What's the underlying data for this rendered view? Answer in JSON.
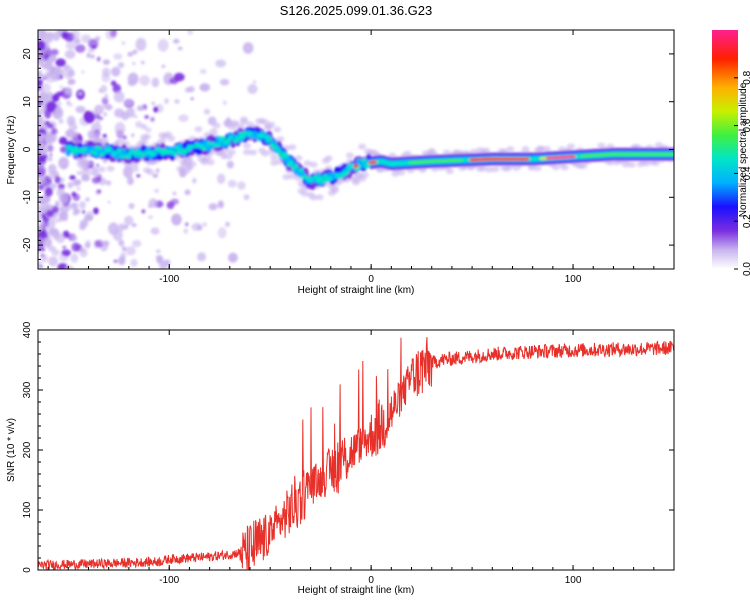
{
  "title": "S126.2025.099.01.36.G23",
  "chart_data": [
    {
      "type": "heatmap",
      "xlabel": "Height of straight line (km)",
      "ylabel": "Frequency (Hz)",
      "xlim": [
        -165,
        150
      ],
      "ylim": [
        -25,
        25
      ],
      "xticks": [
        -100,
        0,
        100
      ],
      "yticks": [
        -20,
        -10,
        0,
        10,
        20
      ],
      "colorbar": {
        "label": "Normalized spectral amplitude",
        "range": [
          0,
          1
        ],
        "ticks": [
          "0.0",
          "0.2",
          "0.4",
          "0.6",
          "0.8"
        ],
        "colormap": [
          "#ffffff",
          "#c9b4ef",
          "#7a2ee0",
          "#1a10ff",
          "#00b0ff",
          "#00e5c8",
          "#40f040",
          "#c8f000",
          "#ffb000",
          "#ff2000",
          "#ff2090"
        ]
      },
      "ridge": [
        {
          "x": -140,
          "y": 0
        },
        {
          "x": -120,
          "y": -1
        },
        {
          "x": -100,
          "y": -0.5
        },
        {
          "x": -85,
          "y": 0.5
        },
        {
          "x": -70,
          "y": 2
        },
        {
          "x": -60,
          "y": 3.5
        },
        {
          "x": -50,
          "y": 2
        },
        {
          "x": -42,
          "y": -2
        },
        {
          "x": -36,
          "y": -4.5
        },
        {
          "x": -30,
          "y": -6.5
        },
        {
          "x": -22,
          "y": -6
        },
        {
          "x": -15,
          "y": -5
        },
        {
          "x": -5,
          "y": -3
        },
        {
          "x": 5,
          "y": -2.5
        },
        {
          "x": 10,
          "y": -3
        },
        {
          "x": 30,
          "y": -2.5
        },
        {
          "x": 60,
          "y": -2
        },
        {
          "x": 80,
          "y": -2
        },
        {
          "x": 100,
          "y": -1.5
        },
        {
          "x": 120,
          "y": -1
        },
        {
          "x": 150,
          "y": -1
        }
      ]
    },
    {
      "type": "line",
      "xlabel": "Height of straight line (km)",
      "ylabel": "SNR (10 * v/v)",
      "xlim": [
        -165,
        150
      ],
      "ylim": [
        0,
        400
      ],
      "xticks": [
        -100,
        0,
        100
      ],
      "yticks": [
        0,
        100,
        200,
        300,
        400
      ],
      "color": "#e8302a",
      "series": [
        {
          "x": [
            -165,
            -140,
            -120,
            -105,
            -100,
            -90,
            -80,
            -70,
            -60,
            -55,
            -50,
            -45,
            -40,
            -35,
            -30,
            -25,
            -20,
            -15,
            -10,
            -5,
            0,
            5,
            10,
            15,
            20,
            25,
            30,
            35,
            40,
            50,
            60,
            70,
            80,
            90,
            100,
            110,
            120,
            130,
            140,
            150
          ],
          "y": [
            8,
            10,
            12,
            14,
            18,
            20,
            22,
            26,
            32,
            45,
            60,
            80,
            100,
            120,
            140,
            150,
            165,
            180,
            195,
            210,
            225,
            240,
            262,
            290,
            320,
            335,
            345,
            350,
            352,
            356,
            360,
            362,
            364,
            365,
            366,
            367,
            368,
            368,
            369,
            370
          ]
        }
      ]
    }
  ]
}
